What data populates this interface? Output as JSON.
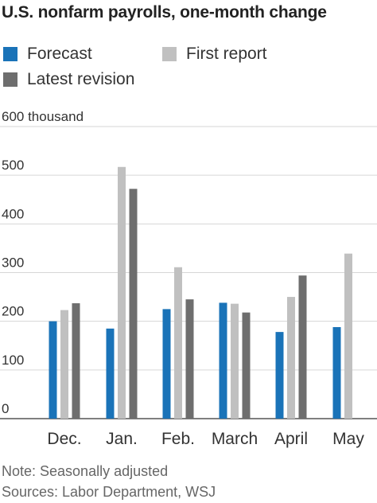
{
  "title": "U.S. nonfarm payrolls, one-month change",
  "legend": [
    {
      "label": "Forecast",
      "color": "#1a73b8"
    },
    {
      "label": "First report",
      "color": "#c0c0c0"
    },
    {
      "label": "Latest revision",
      "color": "#6e6e6e"
    }
  ],
  "chart_data": {
    "type": "bar",
    "title": "U.S. nonfarm payrolls, one-month change",
    "categories": [
      "Dec.",
      "Jan.",
      "Feb.",
      "March",
      "April",
      "May"
    ],
    "series": [
      {
        "name": "Forecast",
        "color": "#1a73b8",
        "values": [
          200,
          185,
          225,
          238,
          178,
          188
        ]
      },
      {
        "name": "First report",
        "color": "#c0c0c0",
        "values": [
          223,
          517,
          311,
          236,
          250,
          339
        ]
      },
      {
        "name": "Latest revision",
        "color": "#6e6e6e",
        "values": [
          237,
          472,
          245,
          218,
          294,
          null
        ]
      }
    ],
    "ylim": [
      0,
      600
    ],
    "yticks": [
      "600 thousand",
      "500",
      "400",
      "300",
      "200",
      "100",
      "0"
    ],
    "ytick_values": [
      600,
      500,
      400,
      300,
      200,
      100,
      0
    ],
    "grid": true
  },
  "note": "Note: Seasonally adjusted",
  "source": "Sources: Labor Department, WSJ"
}
